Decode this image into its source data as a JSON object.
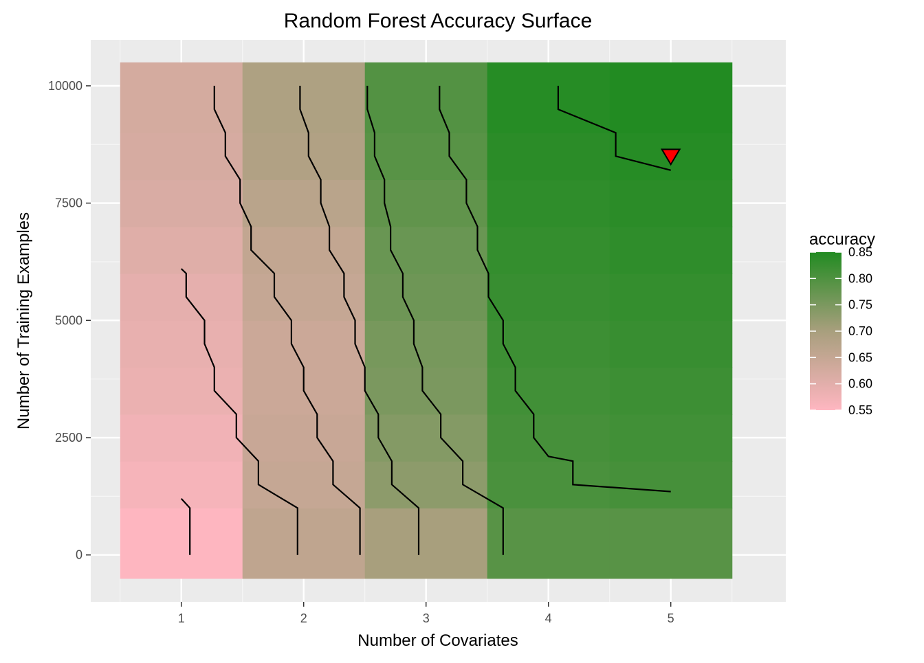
{
  "chart_data": {
    "type": "heatmap",
    "title": "Random Forest Accuracy Surface",
    "xlabel": "Number of Covariates",
    "ylabel": "Number of Training Examples",
    "x_ticks": [
      1,
      2,
      3,
      4,
      5
    ],
    "y_ticks": [
      0,
      2500,
      5000,
      7500,
      10000
    ],
    "xlim": [
      0.26,
      5.94
    ],
    "ylim": [
      -1000,
      10980
    ],
    "grid": true,
    "x_categories": [
      1,
      2,
      3,
      4,
      5
    ],
    "y_bands": [
      {
        "from": -500,
        "to": 1000
      },
      {
        "from": 1000,
        "to": 2000
      },
      {
        "from": 2000,
        "to": 3000
      },
      {
        "from": 3000,
        "to": 4000
      },
      {
        "from": 4000,
        "to": 5000
      },
      {
        "from": 5000,
        "to": 6000
      },
      {
        "from": 6000,
        "to": 7000
      },
      {
        "from": 7000,
        "to": 8000
      },
      {
        "from": 8000,
        "to": 9000
      },
      {
        "from": 9000,
        "to": 10500
      }
    ],
    "accuracy": [
      [
        0.552,
        0.66,
        0.7,
        0.79,
        0.79
      ],
      [
        0.565,
        0.65,
        0.73,
        0.805,
        0.81
      ],
      [
        0.575,
        0.645,
        0.74,
        0.81,
        0.815
      ],
      [
        0.585,
        0.64,
        0.75,
        0.815,
        0.82
      ],
      [
        0.59,
        0.64,
        0.755,
        0.82,
        0.825
      ],
      [
        0.595,
        0.65,
        0.765,
        0.825,
        0.83
      ],
      [
        0.605,
        0.655,
        0.77,
        0.83,
        0.835
      ],
      [
        0.615,
        0.67,
        0.78,
        0.835,
        0.84
      ],
      [
        0.62,
        0.685,
        0.79,
        0.84,
        0.845
      ],
      [
        0.625,
        0.69,
        0.795,
        0.845,
        0.85
      ]
    ],
    "contours": [
      [
        [
          1.07,
          0
        ],
        [
          1.07,
          1000
        ],
        [
          1.0,
          1200
        ]
      ],
      [
        [
          1.0,
          6100
        ],
        [
          1.04,
          6000
        ],
        [
          1.04,
          5500
        ],
        [
          1.19,
          5000
        ],
        [
          1.19,
          4500
        ],
        [
          1.27,
          4000
        ],
        [
          1.27,
          3500
        ],
        [
          1.45,
          3000
        ],
        [
          1.45,
          2500
        ],
        [
          1.63,
          2000
        ],
        [
          1.63,
          1500
        ],
        [
          1.95,
          1000
        ],
        [
          1.95,
          0
        ]
      ],
      [
        [
          1.27,
          10000
        ],
        [
          1.27,
          9500
        ],
        [
          1.36,
          9000
        ],
        [
          1.36,
          8500
        ],
        [
          1.48,
          8000
        ],
        [
          1.48,
          7500
        ],
        [
          1.57,
          7000
        ],
        [
          1.57,
          6500
        ],
        [
          1.76,
          6000
        ],
        [
          1.76,
          5500
        ],
        [
          1.9,
          5000
        ],
        [
          1.9,
          4500
        ],
        [
          2.0,
          4000
        ],
        [
          2.0,
          3500
        ],
        [
          2.11,
          3000
        ],
        [
          2.11,
          2500
        ],
        [
          2.24,
          2000
        ],
        [
          2.24,
          1500
        ],
        [
          2.46,
          1000
        ],
        [
          2.46,
          0
        ]
      ],
      [
        [
          1.97,
          10000
        ],
        [
          1.97,
          9500
        ],
        [
          2.04,
          9000
        ],
        [
          2.04,
          8500
        ],
        [
          2.14,
          8000
        ],
        [
          2.14,
          7500
        ],
        [
          2.21,
          7000
        ],
        [
          2.21,
          6500
        ],
        [
          2.33,
          6000
        ],
        [
          2.33,
          5500
        ],
        [
          2.42,
          5000
        ],
        [
          2.42,
          4500
        ],
        [
          2.5,
          4000
        ],
        [
          2.5,
          3500
        ],
        [
          2.61,
          3000
        ],
        [
          2.61,
          2500
        ],
        [
          2.72,
          2000
        ],
        [
          2.72,
          1500
        ],
        [
          2.94,
          1000
        ],
        [
          2.94,
          0
        ]
      ],
      [
        [
          2.52,
          10000
        ],
        [
          2.52,
          9500
        ],
        [
          2.58,
          9000
        ],
        [
          2.58,
          8500
        ],
        [
          2.66,
          8000
        ],
        [
          2.66,
          7500
        ],
        [
          2.71,
          7000
        ],
        [
          2.71,
          6500
        ],
        [
          2.81,
          6000
        ],
        [
          2.81,
          5500
        ],
        [
          2.9,
          5000
        ],
        [
          2.9,
          4500
        ],
        [
          2.97,
          4000
        ],
        [
          2.97,
          3500
        ],
        [
          3.12,
          3000
        ],
        [
          3.12,
          2500
        ],
        [
          3.3,
          2000
        ],
        [
          3.3,
          1500
        ],
        [
          3.63,
          1000
        ],
        [
          3.63,
          0
        ]
      ],
      [
        [
          3.11,
          10000
        ],
        [
          3.11,
          9500
        ],
        [
          3.19,
          9000
        ],
        [
          3.19,
          8500
        ],
        [
          3.33,
          8000
        ],
        [
          3.33,
          7500
        ],
        [
          3.42,
          7000
        ],
        [
          3.42,
          6500
        ],
        [
          3.51,
          6000
        ],
        [
          3.51,
          5500
        ],
        [
          3.63,
          5000
        ],
        [
          3.63,
          4500
        ],
        [
          3.73,
          4000
        ],
        [
          3.73,
          3500
        ],
        [
          3.88,
          3000
        ],
        [
          3.88,
          2500
        ],
        [
          4.0,
          2100
        ],
        [
          4.2,
          2000
        ],
        [
          4.2,
          1500
        ],
        [
          5.0,
          1350
        ]
      ],
      [
        [
          4.08,
          10000
        ],
        [
          4.08,
          9500
        ],
        [
          4.55,
          9000
        ],
        [
          4.55,
          8500
        ],
        [
          5.0,
          8200
        ]
      ]
    ],
    "marker": {
      "x": 5,
      "y": 8500,
      "shape": "down-triangle",
      "color": "#ff0000"
    },
    "colorbar": {
      "title": "accuracy",
      "min": 0.55,
      "max": 0.85,
      "ticks": [
        "0.55",
        "0.60",
        "0.65",
        "0.70",
        "0.75",
        "0.80",
        "0.85"
      ],
      "low_color": "#ffb6c1",
      "mid_color": "#a89f7d",
      "high_color": "#228b22"
    },
    "colors": {
      "panel_bg": "#ebebeb",
      "grid_major": "#ffffff",
      "contour": "#000000"
    }
  }
}
